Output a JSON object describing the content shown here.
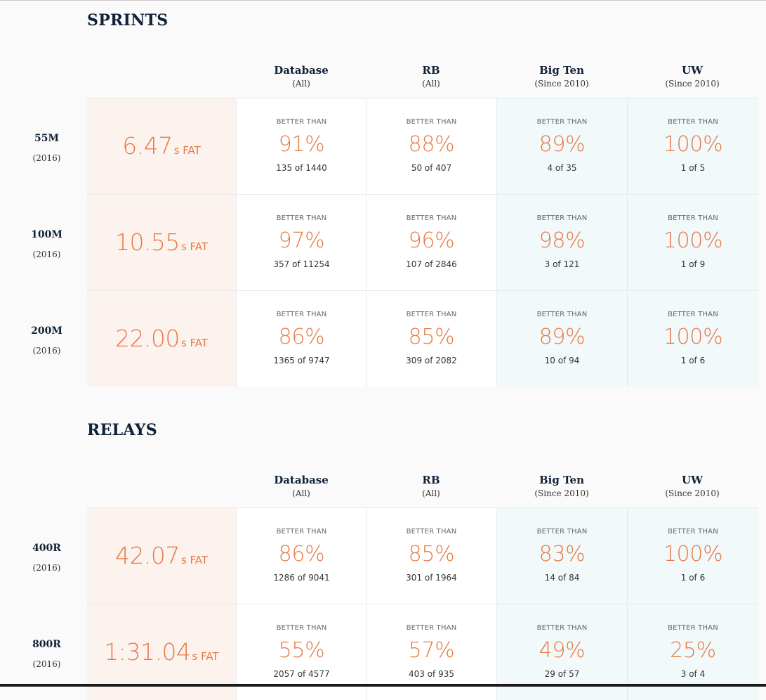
{
  "columns": [
    {
      "name": "Database",
      "sub": "(All)",
      "tinted": false
    },
    {
      "name": "RB",
      "sub": "(All)",
      "tinted": false
    },
    {
      "name": "Big Ten",
      "sub": "(Since 2010)",
      "tinted": true
    },
    {
      "name": "UW",
      "sub": "(Since 2010)",
      "tinted": true
    }
  ],
  "better_than_label": "BETTER THAN",
  "sections": [
    {
      "title": "SPRINTS",
      "events": [
        {
          "name": "55M",
          "year": "(2016)",
          "time": "6.47",
          "unit": "s FAT",
          "stats": [
            {
              "pct": "91%",
              "rank": "135 of 1440"
            },
            {
              "pct": "88%",
              "rank": "50 of 407"
            },
            {
              "pct": "89%",
              "rank": "4 of 35"
            },
            {
              "pct": "100%",
              "rank": "1 of 5"
            }
          ]
        },
        {
          "name": "100M",
          "year": "(2016)",
          "time": "10.55",
          "unit": "s FAT",
          "stats": [
            {
              "pct": "97%",
              "rank": "357 of 11254"
            },
            {
              "pct": "96%",
              "rank": "107 of 2846"
            },
            {
              "pct": "98%",
              "rank": "3 of 121"
            },
            {
              "pct": "100%",
              "rank": "1 of 9"
            }
          ]
        },
        {
          "name": "200M",
          "year": "(2016)",
          "time": "22.00",
          "unit": "s FAT",
          "stats": [
            {
              "pct": "86%",
              "rank": "1365 of 9747"
            },
            {
              "pct": "85%",
              "rank": "309 of 2082"
            },
            {
              "pct": "89%",
              "rank": "10 of 94"
            },
            {
              "pct": "100%",
              "rank": "1 of 6"
            }
          ]
        }
      ]
    },
    {
      "title": "RELAYS",
      "events": [
        {
          "name": "400R",
          "year": "(2016)",
          "time": "42.07",
          "unit": "s FAT",
          "stats": [
            {
              "pct": "86%",
              "rank": "1286 of 9041"
            },
            {
              "pct": "85%",
              "rank": "301 of 1964"
            },
            {
              "pct": "83%",
              "rank": "14 of 84"
            },
            {
              "pct": "100%",
              "rank": "1 of 6"
            }
          ]
        },
        {
          "name": "800R",
          "year": "(2016)",
          "time": "1:31.04",
          "unit": "s FAT",
          "stats": [
            {
              "pct": "55%",
              "rank": "2057 of 4577"
            },
            {
              "pct": "57%",
              "rank": "403 of 935"
            },
            {
              "pct": "49%",
              "rank": "29 of 57"
            },
            {
              "pct": "25%",
              "rank": "3 of 4"
            }
          ]
        }
      ]
    }
  ]
}
